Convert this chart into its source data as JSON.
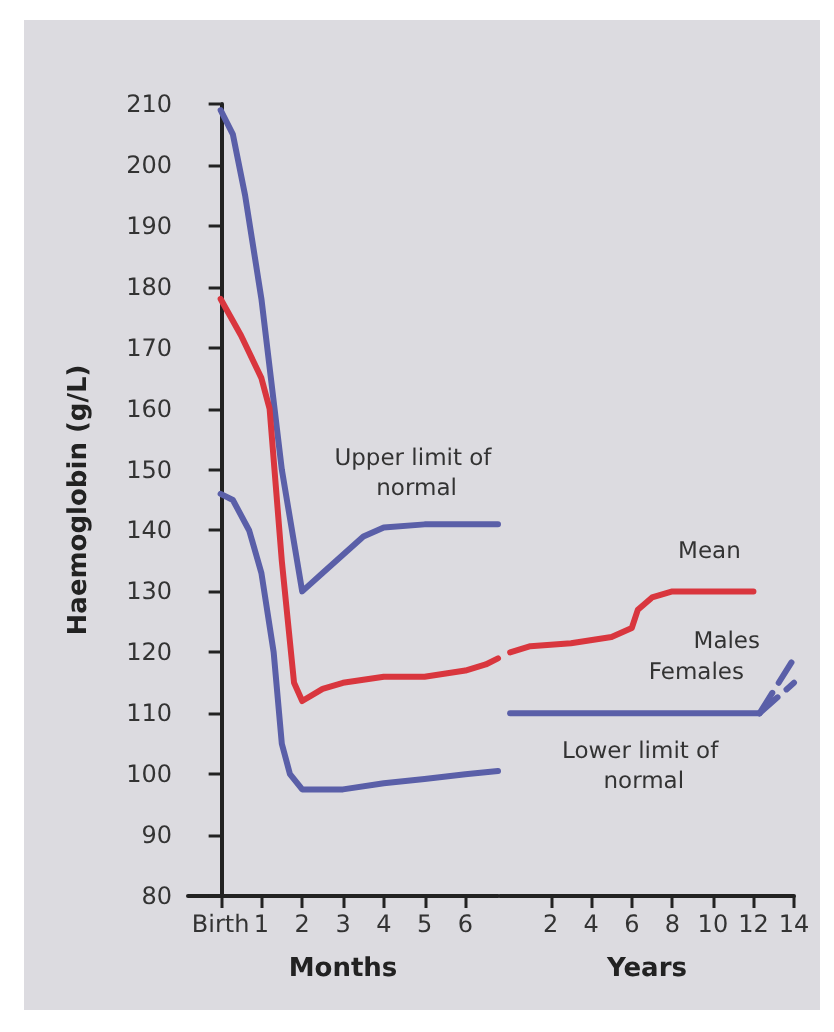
{
  "chart_data": [
    {
      "type": "line",
      "xlabel": "Months",
      "ylabel": "Haemoglobin (g/L)",
      "xlim": [
        -0.8,
        6.8
      ],
      "xticks": [
        {
          "value": 0,
          "label": "Birth"
        },
        1,
        2,
        3,
        4,
        5,
        6
      ],
      "ylim": [
        80,
        210
      ],
      "yticks": [
        80,
        90,
        100,
        110,
        120,
        130,
        140,
        150,
        160,
        170,
        180,
        190,
        200,
        210
      ],
      "marker": "none",
      "line_style": "solid",
      "series": [
        {
          "name": "Upper limit of normal",
          "color": "#5a5fa8",
          "x": [
            0,
            0.3,
            0.6,
            1,
            1.5,
            2,
            2.5,
            3,
            3.5,
            4,
            5,
            6,
            6.8
          ],
          "values": [
            209,
            205,
            195,
            178,
            150,
            130,
            133,
            136,
            139,
            140.5,
            141,
            141,
            141
          ]
        },
        {
          "color": "#d9363e",
          "x": [
            0,
            0.5,
            1,
            1.2,
            1.5,
            1.8,
            2,
            2.5,
            3,
            4,
            5,
            6,
            6.5,
            6.8
          ],
          "values": [
            178,
            172,
            165,
            160,
            135,
            115,
            112,
            114,
            115,
            116,
            116,
            117,
            118,
            119
          ]
        },
        {
          "color": "#5a5fa8",
          "x": [
            0,
            0.3,
            0.7,
            1,
            1.3,
            1.5,
            1.7,
            2,
            3,
            4,
            5,
            6,
            6.8
          ],
          "values": [
            146,
            145,
            140,
            133,
            120,
            105,
            100,
            97.5,
            97.5,
            98.5,
            99.2,
            100,
            100.5
          ]
        }
      ]
    },
    {
      "type": "line",
      "xlabel": "Years",
      "xlim": [
        -0.5,
        14
      ],
      "xticks": [
        2,
        4,
        6,
        8,
        10,
        12,
        14
      ],
      "ylim": [
        80,
        210
      ],
      "tick_labels": "x",
      "marker": "none",
      "line_style": "solid",
      "series": [
        {
          "name": "Mean",
          "color": "#d9363e",
          "x": [
            0,
            1,
            3,
            5,
            6,
            6.3,
            7,
            8,
            10,
            12
          ],
          "values": [
            120,
            121,
            121.5,
            122.5,
            124,
            127,
            129,
            130,
            130,
            130
          ]
        },
        {
          "name": "Lower limit of normal",
          "color": "#5a5fa8",
          "x": [
            0,
            6,
            12,
            12.3
          ],
          "values": [
            110,
            110,
            110,
            110
          ]
        },
        {
          "name": "Males",
          "color": "#5a5fa8",
          "line_style": "dashed",
          "x": [
            12.3,
            14
          ],
          "values": [
            110,
            119
          ]
        },
        {
          "name": "Females",
          "color": "#5a5fa8",
          "line_style": "dashed",
          "x": [
            12.3,
            14
          ],
          "values": [
            110,
            115
          ]
        }
      ]
    }
  ]
}
